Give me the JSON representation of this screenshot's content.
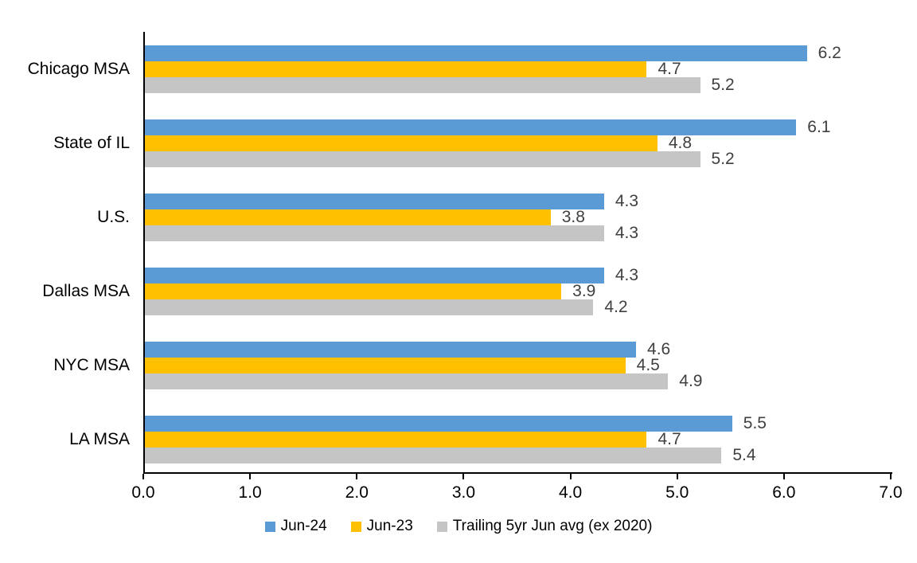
{
  "chart_data": {
    "type": "bar",
    "orientation": "horizontal",
    "title": "",
    "categories": [
      "Chicago MSA",
      "State of IL",
      "U.S.",
      "Dallas MSA",
      "NYC MSA",
      "LA MSA"
    ],
    "series": [
      {
        "name": "Jun-24",
        "color": "#5B9BD5",
        "values": [
          6.2,
          6.1,
          4.3,
          4.3,
          4.6,
          5.5
        ]
      },
      {
        "name": "Jun-23",
        "color": "#FFC000",
        "values": [
          4.7,
          4.8,
          3.8,
          3.9,
          4.5,
          4.7
        ]
      },
      {
        "name": "Trailing 5yr Jun avg (ex 2020)",
        "color": "#C5C5C5",
        "values": [
          5.2,
          5.2,
          4.3,
          4.2,
          4.9,
          5.4
        ]
      }
    ],
    "xlabel": "",
    "ylabel": "",
    "xlim": [
      0.0,
      7.0
    ],
    "x_tick_labels": [
      "0.0",
      "1.0",
      "2.0",
      "3.0",
      "4.0",
      "5.0",
      "6.0",
      "7.0"
    ],
    "data_labels": true,
    "data_label_color": "#404040",
    "axis_color": "#000000",
    "grid": false,
    "legend_position": "bottom"
  }
}
